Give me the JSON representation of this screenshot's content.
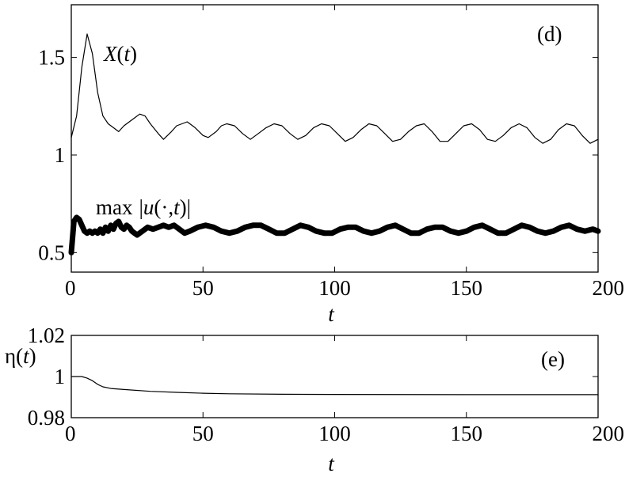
{
  "chart_data": [
    {
      "type": "line",
      "panel_label": "(d)",
      "xlabel": "t",
      "ylabel": "",
      "xlim": [
        0,
        200
      ],
      "ylim": [
        0.4,
        1.77
      ],
      "xticks": [
        "0",
        "50",
        "100",
        "150",
        "200"
      ],
      "yticks": [
        "0.5",
        "1",
        "1.5"
      ],
      "grid": false,
      "series": [
        {
          "name": "X(t)",
          "color": "#000000",
          "points": [
            [
              0,
              1.09
            ],
            [
              2,
              1.2
            ],
            [
              4,
              1.45
            ],
            [
              6,
              1.62
            ],
            [
              8,
              1.52
            ],
            [
              10,
              1.32
            ],
            [
              12,
              1.2
            ],
            [
              14,
              1.16
            ],
            [
              16,
              1.14
            ],
            [
              18,
              1.12
            ],
            [
              20,
              1.15
            ],
            [
              22,
              1.17
            ],
            [
              24,
              1.19
            ],
            [
              26,
              1.21
            ],
            [
              28,
              1.2
            ],
            [
              30,
              1.16
            ],
            [
              33,
              1.11
            ],
            [
              35,
              1.08
            ],
            [
              38,
              1.12
            ],
            [
              40,
              1.15
            ],
            [
              42,
              1.16
            ],
            [
              44,
              1.17
            ],
            [
              47,
              1.14
            ],
            [
              50,
              1.1
            ],
            [
              52,
              1.09
            ],
            [
              55,
              1.12
            ],
            [
              57,
              1.15
            ],
            [
              59,
              1.16
            ],
            [
              62,
              1.15
            ],
            [
              65,
              1.11
            ],
            [
              68,
              1.08
            ],
            [
              71,
              1.11
            ],
            [
              74,
              1.14
            ],
            [
              77,
              1.16
            ],
            [
              80,
              1.15
            ],
            [
              83,
              1.11
            ],
            [
              86,
              1.08
            ],
            [
              89,
              1.1
            ],
            [
              92,
              1.14
            ],
            [
              95,
              1.16
            ],
            [
              98,
              1.15
            ],
            [
              101,
              1.11
            ],
            [
              104,
              1.07
            ],
            [
              107,
              1.09
            ],
            [
              110,
              1.13
            ],
            [
              113,
              1.16
            ],
            [
              116,
              1.15
            ],
            [
              119,
              1.11
            ],
            [
              122,
              1.07
            ],
            [
              125,
              1.08
            ],
            [
              128,
              1.12
            ],
            [
              131,
              1.15
            ],
            [
              134,
              1.16
            ],
            [
              137,
              1.12
            ],
            [
              140,
              1.07
            ],
            [
              143,
              1.07
            ],
            [
              146,
              1.11
            ],
            [
              149,
              1.15
            ],
            [
              152,
              1.16
            ],
            [
              155,
              1.13
            ],
            [
              158,
              1.08
            ],
            [
              161,
              1.07
            ],
            [
              164,
              1.1
            ],
            [
              167,
              1.14
            ],
            [
              170,
              1.16
            ],
            [
              173,
              1.14
            ],
            [
              176,
              1.09
            ],
            [
              179,
              1.06
            ],
            [
              182,
              1.08
            ],
            [
              185,
              1.13
            ],
            [
              188,
              1.16
            ],
            [
              191,
              1.15
            ],
            [
              194,
              1.1
            ],
            [
              197,
              1.06
            ],
            [
              200,
              1.08
            ]
          ]
        },
        {
          "name": "max |u(·,t)|",
          "color": "#000000",
          "points": [
            [
              0,
              0.5
            ],
            [
              1,
              0.66
            ],
            [
              2,
              0.68
            ],
            [
              3,
              0.67
            ],
            [
              4,
              0.64
            ],
            [
              5,
              0.61
            ],
            [
              6,
              0.6
            ],
            [
              7,
              0.61
            ],
            [
              8,
              0.6
            ],
            [
              9,
              0.61
            ],
            [
              10,
              0.6
            ],
            [
              11,
              0.62
            ],
            [
              12,
              0.6
            ],
            [
              13,
              0.63
            ],
            [
              14,
              0.61
            ],
            [
              15,
              0.64
            ],
            [
              16,
              0.62
            ],
            [
              17,
              0.65
            ],
            [
              18,
              0.66
            ],
            [
              19,
              0.63
            ],
            [
              20,
              0.62
            ],
            [
              21,
              0.64
            ],
            [
              22,
              0.63
            ],
            [
              23,
              0.61
            ],
            [
              24,
              0.6
            ],
            [
              25,
              0.59
            ],
            [
              27,
              0.61
            ],
            [
              29,
              0.63
            ],
            [
              31,
              0.62
            ],
            [
              33,
              0.63
            ],
            [
              35,
              0.64
            ],
            [
              37,
              0.63
            ],
            [
              39,
              0.64
            ],
            [
              41,
              0.62
            ],
            [
              43,
              0.6
            ],
            [
              45,
              0.61
            ],
            [
              48,
              0.63
            ],
            [
              51,
              0.64
            ],
            [
              54,
              0.63
            ],
            [
              57,
              0.61
            ],
            [
              60,
              0.6
            ],
            [
              63,
              0.61
            ],
            [
              66,
              0.63
            ],
            [
              69,
              0.64
            ],
            [
              72,
              0.64
            ],
            [
              75,
              0.62
            ],
            [
              78,
              0.6
            ],
            [
              81,
              0.6
            ],
            [
              84,
              0.62
            ],
            [
              87,
              0.64
            ],
            [
              90,
              0.63
            ],
            [
              93,
              0.61
            ],
            [
              96,
              0.6
            ],
            [
              99,
              0.6
            ],
            [
              102,
              0.62
            ],
            [
              105,
              0.63
            ],
            [
              108,
              0.63
            ],
            [
              111,
              0.61
            ],
            [
              114,
              0.6
            ],
            [
              117,
              0.61
            ],
            [
              120,
              0.63
            ],
            [
              123,
              0.64
            ],
            [
              126,
              0.62
            ],
            [
              129,
              0.6
            ],
            [
              132,
              0.6
            ],
            [
              135,
              0.62
            ],
            [
              138,
              0.63
            ],
            [
              141,
              0.63
            ],
            [
              144,
              0.61
            ],
            [
              147,
              0.6
            ],
            [
              150,
              0.61
            ],
            [
              153,
              0.63
            ],
            [
              156,
              0.64
            ],
            [
              159,
              0.62
            ],
            [
              162,
              0.6
            ],
            [
              165,
              0.6
            ],
            [
              168,
              0.62
            ],
            [
              171,
              0.64
            ],
            [
              174,
              0.63
            ],
            [
              177,
              0.61
            ],
            [
              180,
              0.6
            ],
            [
              183,
              0.61
            ],
            [
              186,
              0.63
            ],
            [
              189,
              0.64
            ],
            [
              192,
              0.62
            ],
            [
              195,
              0.61
            ],
            [
              198,
              0.62
            ],
            [
              200,
              0.61
            ]
          ]
        }
      ]
    },
    {
      "type": "line",
      "panel_label": "(e)",
      "xlabel": "t",
      "ylabel": "η(t)",
      "xlim": [
        0,
        200
      ],
      "ylim": [
        0.98,
        1.02
      ],
      "xticks": [
        "0",
        "50",
        "100",
        "150",
        "200"
      ],
      "yticks": [
        "0.98",
        "1",
        "1.02"
      ],
      "grid": false,
      "series": [
        {
          "name": "η(t)",
          "color": "#000000",
          "points": [
            [
              0,
              1.0
            ],
            [
              4,
              1.0
            ],
            [
              6,
              0.9992
            ],
            [
              8,
              0.998
            ],
            [
              10,
              0.9962
            ],
            [
              12,
              0.995
            ],
            [
              15,
              0.9942
            ],
            [
              20,
              0.9937
            ],
            [
              30,
              0.9928
            ],
            [
              40,
              0.9923
            ],
            [
              50,
              0.9919
            ],
            [
              60,
              0.9916
            ],
            [
              80,
              0.9914
            ],
            [
              100,
              0.9913
            ],
            [
              150,
              0.9912
            ],
            [
              200,
              0.9912
            ]
          ]
        }
      ]
    }
  ],
  "labels": {
    "d_panel": "(d)",
    "e_panel": "(e)",
    "x_t_label_X": "X",
    "x_t_label_t": "t",
    "max_label_max": "max",
    "max_label_u": "u",
    "max_label_rest": "(·,",
    "max_label_t": "t",
    "eta_symbol": "η",
    "eta_t": "t",
    "xaxis_d": "t",
    "xaxis_e": "t"
  }
}
